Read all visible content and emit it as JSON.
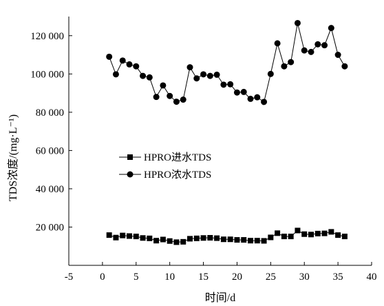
{
  "chart_data": {
    "type": "line",
    "title": "",
    "xlabel": "时间/d",
    "ylabel": "TDS浓度/(mg·L⁻¹)",
    "xlim": [
      -5,
      40
    ],
    "ylim": [
      0,
      130000
    ],
    "x_ticks": [
      -5,
      0,
      5,
      10,
      15,
      20,
      25,
      30,
      35,
      40
    ],
    "x_tick_labels": [
      "-5",
      "0",
      "5",
      "10",
      "15",
      "20",
      "25",
      "30",
      "35",
      "40"
    ],
    "y_ticks": [
      20000,
      40000,
      60000,
      80000,
      100000,
      120000
    ],
    "y_tick_labels": [
      "20 000",
      "40 000",
      "60 000",
      "80 000",
      "100 000",
      "120 000"
    ],
    "grid": false,
    "legend_position": "center-left",
    "series": [
      {
        "name": "HPRO进水TDS",
        "marker": "square",
        "color": "#000000",
        "x": [
          1,
          2,
          3,
          4,
          5,
          6,
          7,
          8,
          9,
          10,
          11,
          12,
          13,
          14,
          15,
          16,
          17,
          18,
          19,
          20,
          21,
          22,
          23,
          24,
          25,
          26,
          27,
          28,
          29,
          30,
          31,
          32,
          33,
          34,
          35,
          36
        ],
        "y": [
          15800,
          14500,
          15600,
          15300,
          15100,
          14300,
          14100,
          12900,
          13500,
          12700,
          12100,
          12300,
          13900,
          14100,
          14300,
          14400,
          14200,
          13600,
          13600,
          13300,
          13300,
          12900,
          12900,
          12800,
          14600,
          16800,
          15100,
          15100,
          18200,
          16300,
          16100,
          16600,
          16700,
          17500,
          15800,
          15100
        ]
      },
      {
        "name": "HPRO浓水TDS",
        "marker": "circle",
        "color": "#000000",
        "x": [
          1,
          2,
          3,
          4,
          5,
          6,
          7,
          8,
          9,
          10,
          11,
          12,
          13,
          14,
          15,
          16,
          17,
          18,
          19,
          20,
          21,
          22,
          23,
          24,
          25,
          26,
          27,
          28,
          29,
          30,
          31,
          32,
          33,
          34,
          35,
          36
        ],
        "y": [
          109000,
          99800,
          107000,
          105000,
          104000,
          99000,
          98200,
          88000,
          94000,
          88500,
          85500,
          86600,
          103500,
          97700,
          99800,
          99000,
          99600,
          94400,
          94600,
          90300,
          90600,
          87000,
          87800,
          85400,
          100000,
          116000,
          104000,
          106200,
          126600,
          112300,
          111500,
          115500,
          115000,
          124000,
          110000,
          104000
        ]
      }
    ]
  }
}
